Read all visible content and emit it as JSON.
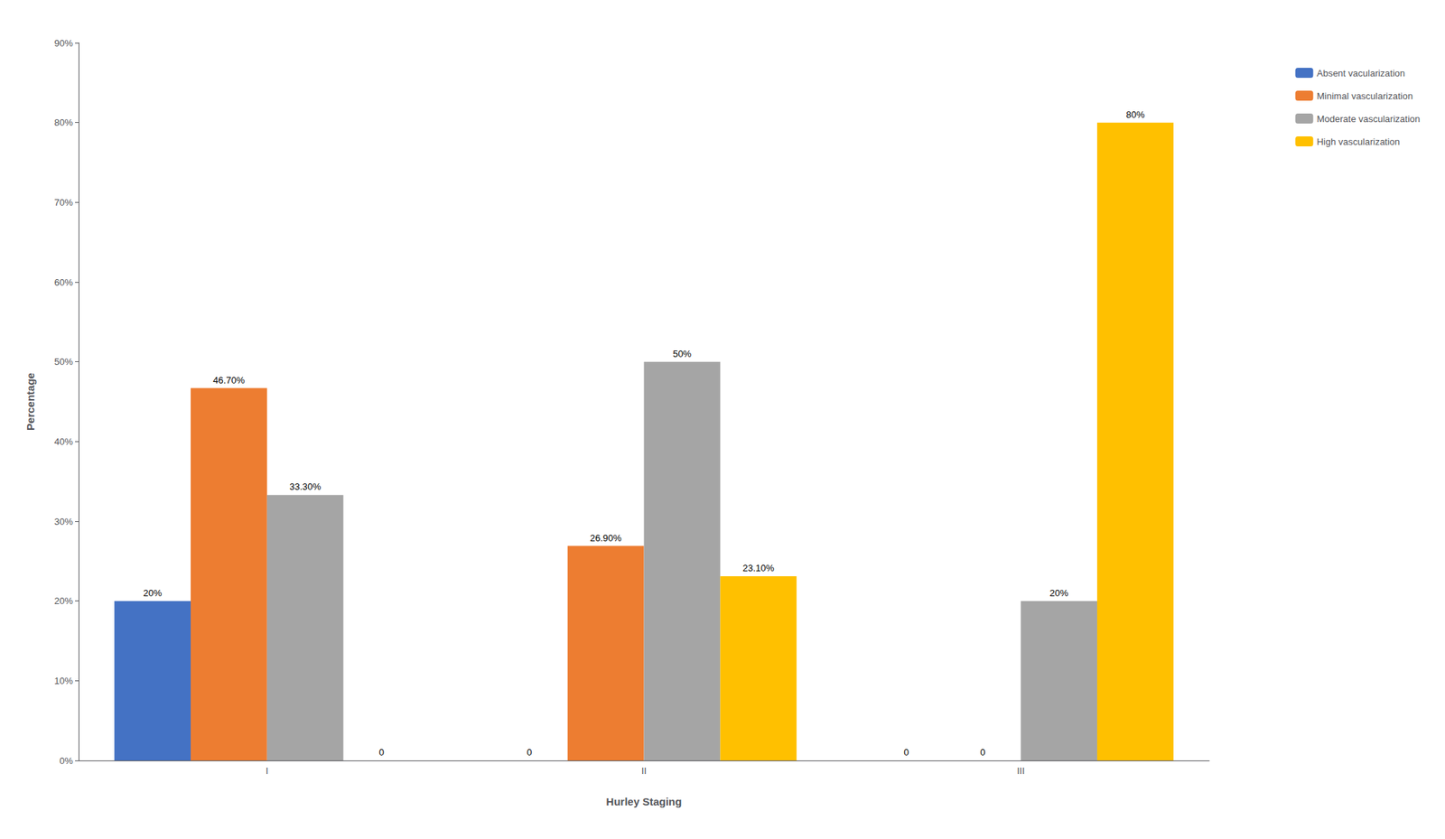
{
  "chart_data": {
    "type": "bar",
    "xlabel": "Hurley Staging",
    "ylabel": "Percentage",
    "categories": [
      "I",
      "II",
      "III"
    ],
    "series": [
      {
        "name": "Absent vacularization",
        "color": "#4472C4",
        "values": [
          20,
          0,
          0
        ],
        "value_labels": [
          "20%",
          "0",
          "0"
        ]
      },
      {
        "name": "Minimal vascularization",
        "color": "#ED7D31",
        "values": [
          46.7,
          26.9,
          0
        ],
        "value_labels": [
          "46.70%",
          "26.90%",
          "0"
        ]
      },
      {
        "name": "Moderate vascularization",
        "color": "#A5A5A5",
        "values": [
          33.3,
          50,
          20
        ],
        "value_labels": [
          "33.30%",
          "50%",
          "20%"
        ]
      },
      {
        "name": "High vascularization",
        "color": "#FFC000",
        "values": [
          0,
          23.1,
          80
        ],
        "value_labels": [
          "0",
          "23.10%",
          "80%"
        ]
      }
    ],
    "ylim": [
      0,
      90
    ],
    "yticks": [
      {
        "value": 0,
        "label": "0%"
      },
      {
        "value": 10,
        "label": "10%"
      },
      {
        "value": 20,
        "label": "20%"
      },
      {
        "value": 30,
        "label": "30%"
      },
      {
        "value": 40,
        "label": "40%"
      },
      {
        "value": 50,
        "label": "50%"
      },
      {
        "value": 60,
        "label": "60%"
      },
      {
        "value": 70,
        "label": "70%"
      },
      {
        "value": 80,
        "label": "80%"
      },
      {
        "value": 90,
        "label": "90%"
      }
    ],
    "grid": false,
    "legend": "upper right",
    "data_labels": true
  }
}
